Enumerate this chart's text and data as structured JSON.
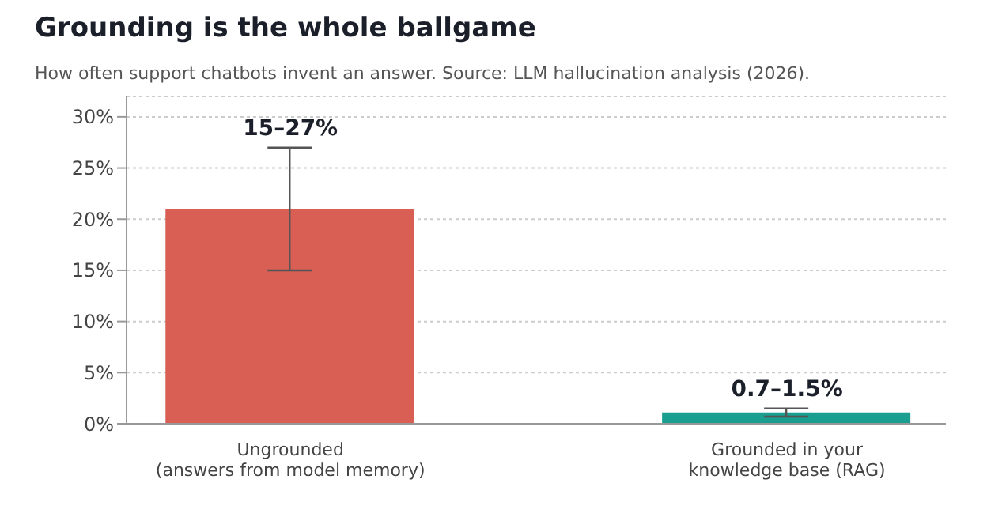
{
  "chart_data": {
    "type": "bar",
    "title": "Grounding is the whole ballgame",
    "subtitle": "How often support chatbots invent an answer. Source: LLM hallucination analysis (2026).",
    "categories": [
      "Ungrounded\n(answers from model memory)",
      "Grounded in your\nknowledge base (RAG)"
    ],
    "values": [
      21,
      1.1
    ],
    "colors": [
      "#d95f55",
      "#1a9e8f"
    ],
    "errors": [
      [
        15,
        27
      ],
      [
        0.7,
        1.5
      ]
    ],
    "annotations": [
      {
        "text": "15–27%",
        "x": "Ungrounded\n(answers from model memory)",
        "y": 27
      },
      {
        "text": "0.7–1.5%",
        "x": "Grounded in your\nknowledge base (RAG)",
        "y": 1.5
      }
    ],
    "ylim": [
      0,
      32
    ],
    "yticks": [
      {
        "value": 0,
        "label": "0%"
      },
      {
        "value": 5,
        "label": "5%"
      },
      {
        "value": 10,
        "label": "10%"
      },
      {
        "value": 15,
        "label": "15%"
      },
      {
        "value": 20,
        "label": "20%"
      },
      {
        "value": 25,
        "label": "25%"
      },
      {
        "value": 30,
        "label": "30%"
      }
    ],
    "grid": "y"
  }
}
